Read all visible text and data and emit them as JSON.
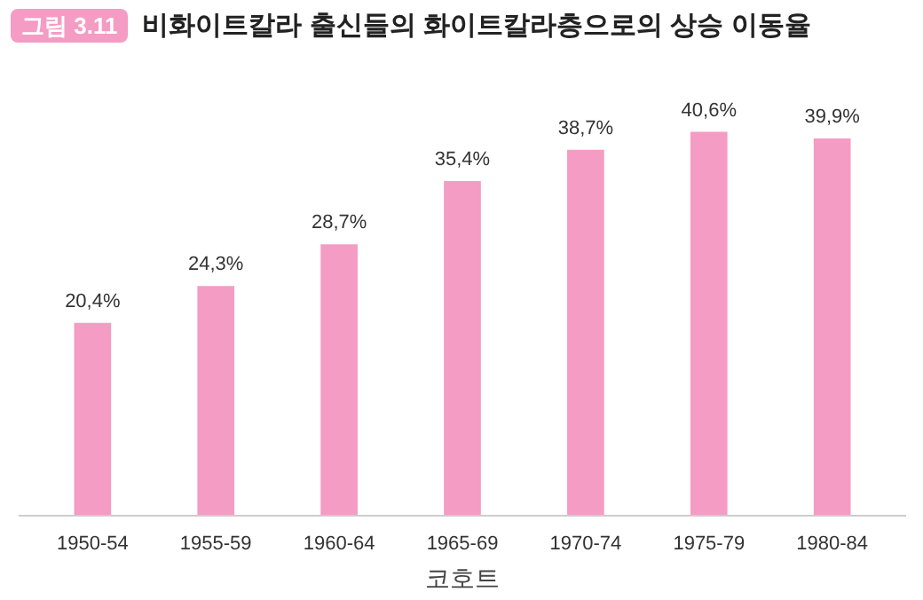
{
  "chart_data": {
    "type": "bar",
    "title": "비화이트칼라 출신들의 화이트칼라층으로의 상승 이동율",
    "annotations": [
      "그림 3.11"
    ],
    "xlabel": "코호트",
    "categories": [
      "1950-54",
      "1955-59",
      "1960-64",
      "1965-69",
      "1970-74",
      "1975-79",
      "1980-84"
    ],
    "values": [
      20.4,
      24.3,
      28.7,
      35.4,
      38.7,
      40.6,
      39.9
    ],
    "value_labels": [
      "20,4%",
      "24,3%",
      "28,7%",
      "35,4%",
      "38,7%",
      "40,6%",
      "39,9%"
    ],
    "color": "#f49cc4",
    "grid": false
  }
}
